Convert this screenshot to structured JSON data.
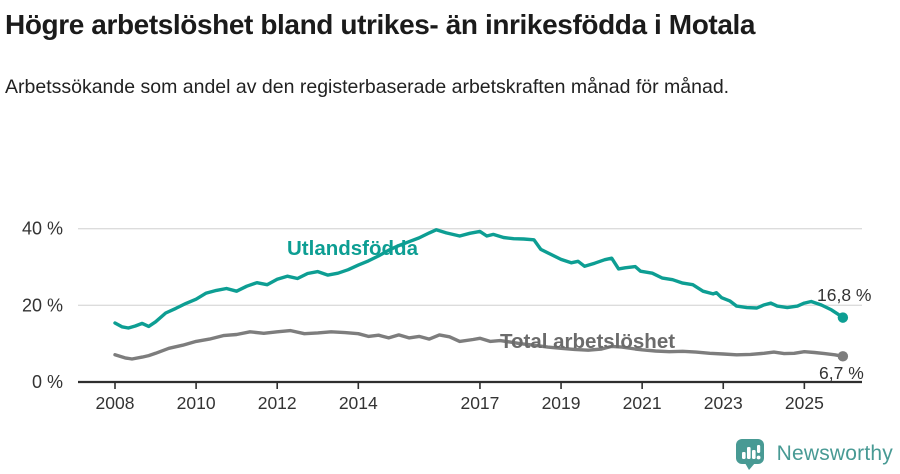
{
  "header": {
    "title": "Högre arbetslöshet bland utrikes- än inrikesfödda i Motala",
    "subtitle": "Arbetssökande som andel av den registerbaserade arbetskraften månad för månad."
  },
  "chart_data": {
    "type": "line",
    "title": "Högre arbetslöshet bland utrikes- än inrikesfödda i Motala",
    "xlabel": "",
    "ylabel": "Arbetssökande som andel av den registerbaserade arbetskraften (%)",
    "ylim": [
      0,
      47
    ],
    "xlim": [
      2007.3,
      2026.4
    ],
    "grid": "horizontal-light",
    "legend_position": "inline-labels",
    "y_ticks": [
      {
        "value": 0,
        "label": "0 %"
      },
      {
        "value": 20,
        "label": "20 %"
      },
      {
        "value": 40,
        "label": "40 %"
      }
    ],
    "x_ticks": [
      {
        "year": 2008,
        "label": "2008"
      },
      {
        "year": 2010,
        "label": "2010"
      },
      {
        "year": 2012,
        "label": "2012"
      },
      {
        "year": 2014,
        "label": "2014"
      },
      {
        "year": 2017,
        "label": "2017"
      },
      {
        "year": 2019,
        "label": "2019"
      },
      {
        "year": 2021,
        "label": "2021"
      },
      {
        "year": 2023,
        "label": "2023"
      },
      {
        "year": 2025,
        "label": "2025"
      }
    ],
    "series": [
      {
        "name": "Utlandsfödda",
        "color": "#0d9e93",
        "end_label": "16,8 %",
        "end_value": 16.8,
        "points": [
          [
            2008.0,
            15.4
          ],
          [
            2008.17,
            14.4
          ],
          [
            2008.33,
            14.1
          ],
          [
            2008.5,
            14.6
          ],
          [
            2008.67,
            15.3
          ],
          [
            2008.83,
            14.5
          ],
          [
            2009.0,
            15.7
          ],
          [
            2009.25,
            18.0
          ],
          [
            2009.5,
            19.2
          ],
          [
            2009.75,
            20.5
          ],
          [
            2010.0,
            21.6
          ],
          [
            2010.25,
            23.2
          ],
          [
            2010.5,
            23.9
          ],
          [
            2010.75,
            24.4
          ],
          [
            2011.0,
            23.7
          ],
          [
            2011.25,
            25.0
          ],
          [
            2011.5,
            25.9
          ],
          [
            2011.75,
            25.4
          ],
          [
            2012.0,
            26.8
          ],
          [
            2012.25,
            27.6
          ],
          [
            2012.5,
            27.0
          ],
          [
            2012.75,
            28.3
          ],
          [
            2013.0,
            28.8
          ],
          [
            2013.25,
            27.9
          ],
          [
            2013.5,
            28.4
          ],
          [
            2013.75,
            29.3
          ],
          [
            2014.0,
            30.5
          ],
          [
            2014.25,
            31.6
          ],
          [
            2014.5,
            32.9
          ],
          [
            2014.75,
            34.4
          ],
          [
            2015.0,
            35.6
          ],
          [
            2015.25,
            36.6
          ],
          [
            2015.5,
            37.6
          ],
          [
            2015.75,
            38.9
          ],
          [
            2015.92,
            39.7
          ],
          [
            2016.17,
            38.9
          ],
          [
            2016.5,
            38.1
          ],
          [
            2016.75,
            38.8
          ],
          [
            2017.0,
            39.3
          ],
          [
            2017.17,
            38.1
          ],
          [
            2017.33,
            38.5
          ],
          [
            2017.58,
            37.7
          ],
          [
            2017.83,
            37.4
          ],
          [
            2018.08,
            37.3
          ],
          [
            2018.33,
            37.1
          ],
          [
            2018.5,
            34.6
          ],
          [
            2018.75,
            33.3
          ],
          [
            2019.0,
            32.0
          ],
          [
            2019.25,
            31.1
          ],
          [
            2019.42,
            31.5
          ],
          [
            2019.58,
            30.2
          ],
          [
            2019.83,
            31.0
          ],
          [
            2020.08,
            31.9
          ],
          [
            2020.25,
            32.3
          ],
          [
            2020.42,
            29.5
          ],
          [
            2020.58,
            29.8
          ],
          [
            2020.83,
            30.1
          ],
          [
            2020.96,
            28.9
          ],
          [
            2021.25,
            28.4
          ],
          [
            2021.5,
            27.1
          ],
          [
            2021.75,
            26.7
          ],
          [
            2022.0,
            25.8
          ],
          [
            2022.25,
            25.4
          ],
          [
            2022.5,
            23.7
          ],
          [
            2022.75,
            23.0
          ],
          [
            2022.83,
            23.3
          ],
          [
            2022.96,
            22.0
          ],
          [
            2023.17,
            21.1
          ],
          [
            2023.33,
            19.8
          ],
          [
            2023.58,
            19.4
          ],
          [
            2023.83,
            19.3
          ],
          [
            2024.0,
            20.1
          ],
          [
            2024.17,
            20.6
          ],
          [
            2024.33,
            19.8
          ],
          [
            2024.58,
            19.4
          ],
          [
            2024.83,
            19.8
          ],
          [
            2025.0,
            20.6
          ],
          [
            2025.17,
            21.0
          ],
          [
            2025.42,
            20.1
          ],
          [
            2025.67,
            18.8
          ],
          [
            2025.83,
            17.7
          ],
          [
            2025.95,
            16.8
          ]
        ]
      },
      {
        "name": "Total arbetslöshet",
        "color": "#7d7d7d",
        "label_color": "#6b6b6b",
        "end_label": "6,7 %",
        "end_value": 6.7,
        "points": [
          [
            2008.0,
            7.1
          ],
          [
            2008.25,
            6.3
          ],
          [
            2008.42,
            6.0
          ],
          [
            2008.67,
            6.5
          ],
          [
            2008.83,
            6.9
          ],
          [
            2009.0,
            7.5
          ],
          [
            2009.33,
            8.8
          ],
          [
            2009.67,
            9.6
          ],
          [
            2010.0,
            10.6
          ],
          [
            2010.33,
            11.2
          ],
          [
            2010.67,
            12.1
          ],
          [
            2011.0,
            12.4
          ],
          [
            2011.33,
            13.1
          ],
          [
            2011.67,
            12.7
          ],
          [
            2012.0,
            13.1
          ],
          [
            2012.33,
            13.4
          ],
          [
            2012.67,
            12.6
          ],
          [
            2013.0,
            12.8
          ],
          [
            2013.33,
            13.1
          ],
          [
            2013.67,
            12.9
          ],
          [
            2014.0,
            12.6
          ],
          [
            2014.25,
            11.9
          ],
          [
            2014.5,
            12.2
          ],
          [
            2014.75,
            11.5
          ],
          [
            2015.0,
            12.3
          ],
          [
            2015.25,
            11.5
          ],
          [
            2015.5,
            11.9
          ],
          [
            2015.75,
            11.2
          ],
          [
            2016.0,
            12.3
          ],
          [
            2016.25,
            11.8
          ],
          [
            2016.5,
            10.6
          ],
          [
            2016.83,
            11.1
          ],
          [
            2017.0,
            11.4
          ],
          [
            2017.25,
            10.6
          ],
          [
            2017.5,
            10.8
          ],
          [
            2017.75,
            10.4
          ],
          [
            2018.0,
            10.0
          ],
          [
            2018.33,
            9.6
          ],
          [
            2018.67,
            9.1
          ],
          [
            2019.0,
            8.8
          ],
          [
            2019.33,
            8.5
          ],
          [
            2019.67,
            8.3
          ],
          [
            2020.0,
            8.6
          ],
          [
            2020.25,
            9.3
          ],
          [
            2020.5,
            9.1
          ],
          [
            2020.83,
            8.6
          ],
          [
            2021.0,
            8.4
          ],
          [
            2021.33,
            8.1
          ],
          [
            2021.67,
            7.9
          ],
          [
            2022.0,
            8.0
          ],
          [
            2022.33,
            7.8
          ],
          [
            2022.67,
            7.5
          ],
          [
            2023.0,
            7.3
          ],
          [
            2023.33,
            7.1
          ],
          [
            2023.67,
            7.2
          ],
          [
            2024.0,
            7.5
          ],
          [
            2024.25,
            7.8
          ],
          [
            2024.5,
            7.4
          ],
          [
            2024.75,
            7.5
          ],
          [
            2025.0,
            7.9
          ],
          [
            2025.25,
            7.7
          ],
          [
            2025.5,
            7.4
          ],
          [
            2025.75,
            7.1
          ],
          [
            2025.95,
            6.7
          ]
        ]
      }
    ]
  },
  "footer": {
    "brand": "Newsworthy"
  },
  "colors": {
    "accent_teal": "#0d9e93",
    "series_gray": "#7d7d7d",
    "axis": "#2f2f2f",
    "gridline": "#dcdcdc",
    "tick_text": "#333333",
    "brand_teal": "#489a94"
  }
}
